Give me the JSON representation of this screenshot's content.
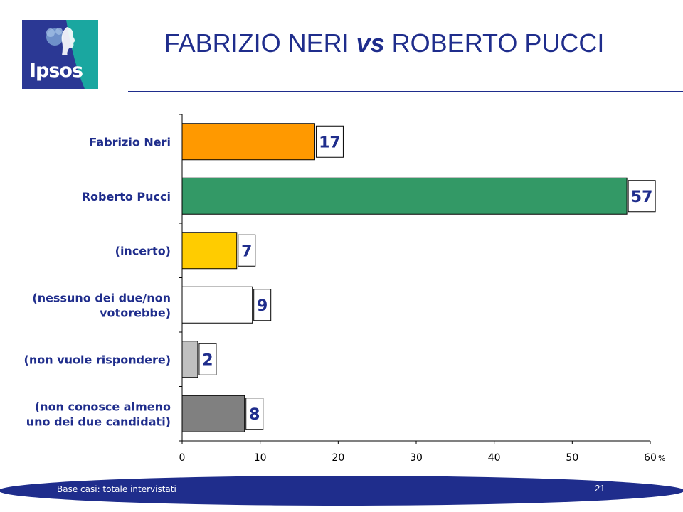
{
  "header": {
    "logo_text": "Ipsos",
    "title_part1": "FABRIZIO NERI ",
    "title_vs": "vs",
    "title_part2": " ROBERTO PUCCI"
  },
  "colors": {
    "title": "#1f2d8c",
    "logo_blue": "#2b3894",
    "logo_teal": "#1aa7a0"
  },
  "chart_data": {
    "type": "bar",
    "orientation": "horizontal",
    "categories": [
      [
        "Fabrizio Neri"
      ],
      [
        "Roberto Pucci"
      ],
      [
        "(incerto)"
      ],
      [
        "(nessuno dei due/non",
        "votorebbe)"
      ],
      [
        "(non vuole rispondere)"
      ],
      [
        "(non conosce almeno",
        "uno dei due candidati)"
      ]
    ],
    "values": [
      17,
      57,
      7,
      9,
      2,
      8
    ],
    "colors": [
      "#ff9900",
      "#339966",
      "#ffcc00",
      "#ffffff",
      "#c0c0c0",
      "#808080"
    ],
    "data_labels": [
      "17",
      "57",
      "7",
      "9",
      "2",
      "8"
    ],
    "xlim": [
      0,
      60
    ],
    "xticks": [
      0,
      10,
      20,
      30,
      40,
      50,
      60
    ],
    "xlabel": "%",
    "grid": false,
    "legend": "none"
  },
  "footer": {
    "note": "Base casi: totale intervistati",
    "page": "21"
  }
}
